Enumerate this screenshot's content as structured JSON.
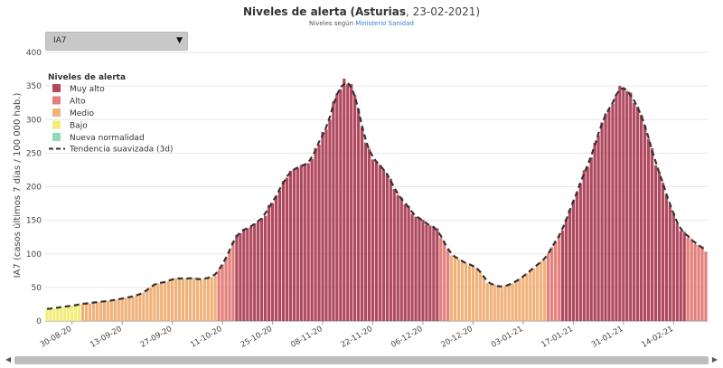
{
  "header": {
    "title_bold": "Niveles de alerta",
    "title_place": "(Asturias",
    "title_date": ", 23-02-2021)",
    "subtitle_prefix": "Niveles según",
    "subtitle_link": "Ministerio Sanidad"
  },
  "dropdown": {
    "selected": "IA7",
    "icon": "chevron-down-icon"
  },
  "colors": {
    "muy_alto": "#b0485e",
    "alto": "#e37f7c",
    "medio": "#f0b27a",
    "bajo": "#f3ee7a",
    "nueva": "#8fd9be",
    "trend": "#333333"
  },
  "chart_data": {
    "type": "bar",
    "ylabel": "IA7 (casos últimos 7 días / 100 000 hab.)",
    "ylim": [
      0,
      400
    ],
    "yticks": [
      0,
      50,
      100,
      150,
      200,
      250,
      300,
      350,
      400
    ],
    "x_start": "2020-08-23",
    "x_end": "2021-02-23",
    "xticks": [
      "30-08-20",
      "13-09-20",
      "27-09-20",
      "11-10-20",
      "25-10-20",
      "08-11-20",
      "22-11-20",
      "06-12-20",
      "20-12-20",
      "03-01-21",
      "17-01-21",
      "31-01-21",
      "14-02-21"
    ],
    "legend": {
      "title": "Niveles de alerta",
      "items": [
        {
          "label": "Muy alto",
          "key": "muy_alto"
        },
        {
          "label": "Alto",
          "key": "alto"
        },
        {
          "label": "Medio",
          "key": "medio"
        },
        {
          "label": "Bajo",
          "key": "bajo"
        },
        {
          "label": "Nueva normalidad",
          "key": "nueva"
        }
      ],
      "trend_label": "Tendencia suavizada (3d)"
    },
    "thresholds": {
      "bajo": 25,
      "medio": 50,
      "alto": 150
    },
    "series_control": [
      {
        "date": "2020-08-23",
        "value": 18
      },
      {
        "date": "2020-08-26",
        "value": 20
      },
      {
        "date": "2020-08-30",
        "value": 23
      },
      {
        "date": "2020-09-03",
        "value": 26
      },
      {
        "date": "2020-09-08",
        "value": 29
      },
      {
        "date": "2020-09-13",
        "value": 33
      },
      {
        "date": "2020-09-18",
        "value": 40
      },
      {
        "date": "2020-09-22",
        "value": 54
      },
      {
        "date": "2020-09-27",
        "value": 62
      },
      {
        "date": "2020-10-02",
        "value": 63
      },
      {
        "date": "2020-10-06",
        "value": 62
      },
      {
        "date": "2020-10-09",
        "value": 68
      },
      {
        "date": "2020-10-12",
        "value": 95
      },
      {
        "date": "2020-10-15",
        "value": 128
      },
      {
        "date": "2020-10-19",
        "value": 142
      },
      {
        "date": "2020-10-23",
        "value": 160
      },
      {
        "date": "2020-10-26",
        "value": 190
      },
      {
        "date": "2020-10-30",
        "value": 225
      },
      {
        "date": "2020-11-02",
        "value": 232
      },
      {
        "date": "2020-11-05",
        "value": 245
      },
      {
        "date": "2020-11-09",
        "value": 290
      },
      {
        "date": "2020-11-12",
        "value": 340
      },
      {
        "date": "2020-11-14",
        "value": 365
      },
      {
        "date": "2020-11-16",
        "value": 355
      },
      {
        "date": "2020-11-18",
        "value": 318
      },
      {
        "date": "2020-11-20",
        "value": 260
      },
      {
        "date": "2020-11-24",
        "value": 230
      },
      {
        "date": "2020-11-28",
        "value": 200
      },
      {
        "date": "2020-12-02",
        "value": 168
      },
      {
        "date": "2020-12-06",
        "value": 148
      },
      {
        "date": "2020-12-10",
        "value": 135
      },
      {
        "date": "2020-12-14",
        "value": 100
      },
      {
        "date": "2020-12-18",
        "value": 85
      },
      {
        "date": "2020-12-21",
        "value": 80
      },
      {
        "date": "2020-12-24",
        "value": 58
      },
      {
        "date": "2020-12-28",
        "value": 50
      },
      {
        "date": "2021-01-01",
        "value": 58
      },
      {
        "date": "2021-01-05",
        "value": 75
      },
      {
        "date": "2021-01-09",
        "value": 92
      },
      {
        "date": "2021-01-13",
        "value": 125
      },
      {
        "date": "2021-01-17",
        "value": 175
      },
      {
        "date": "2021-01-21",
        "value": 235
      },
      {
        "date": "2021-01-25",
        "value": 290
      },
      {
        "date": "2021-01-29",
        "value": 340
      },
      {
        "date": "2021-02-01",
        "value": 350
      },
      {
        "date": "2021-02-04",
        "value": 320
      },
      {
        "date": "2021-02-08",
        "value": 255
      },
      {
        "date": "2021-02-12",
        "value": 185
      },
      {
        "date": "2021-02-16",
        "value": 135
      },
      {
        "date": "2021-02-20",
        "value": 115
      },
      {
        "date": "2021-02-23",
        "value": 106
      }
    ]
  }
}
